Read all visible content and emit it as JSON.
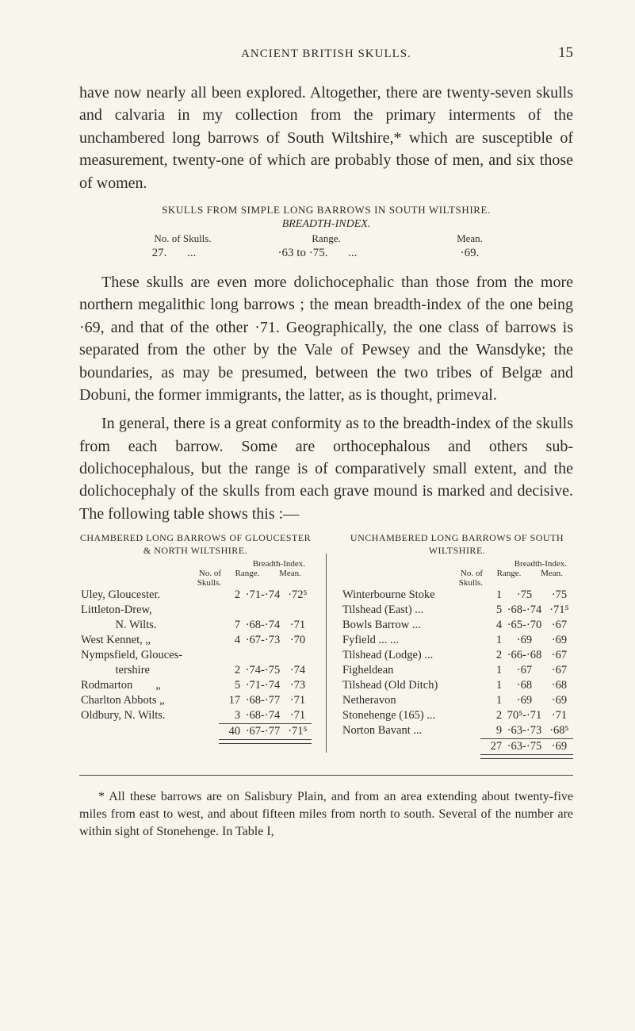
{
  "page": {
    "running_title": "ANCIENT BRITISH SKULLS.",
    "number": "15",
    "background_color": "#f8f5ec",
    "text_color": "#2b2b26",
    "font_family": "Times New Roman",
    "body_fontsize_pt": 15,
    "small_caps_fontsize_pt": 10,
    "footnote_fontsize_pt": 12
  },
  "para1": "have now nearly all been explored. Altogether, there are twenty-seven skulls and calvaria in my collection from the primary interments of the unchambered long barrows of South Wiltshire,* which are susceptible of measurement, twenty-one of which are probably those of men, and six those of women.",
  "simple_table": {
    "title": "SKULLS FROM SIMPLE LONG BARROWS IN SOUTH WILTSHIRE.",
    "subtitle": "BREADTH-INDEX.",
    "headers": [
      "No. of Skulls.",
      "Range.",
      "Mean."
    ],
    "row": [
      "27.",
      "·63 to ·75.",
      "·69."
    ],
    "ellipsis": "..."
  },
  "para2": "These skulls are even more dolichocephalic than those from the more northern megalithic long barrows ; the mean breadth-index of the one being ·69, and that of the other ·71. Geographically, the one class of barrows is separated from the other by the Vale of Pewsey and the Wansdyke; the boundaries, as may be presumed, between the two tribes of Belgæ and Dobuni, the former immigrants, the latter, as is thought, primeval.",
  "para3": "In general, there is a great conformity as to the breadth-index of the skulls from each barrow. Some are orthocephalous and others sub-dolichocephalous, but the range is of comparatively small extent, and the dolichocephaly of the skulls from each grave mound is marked and decisive. The following table shows this :—",
  "left_table": {
    "title": "CHAMBERED LONG BARROWS OF GLOUCESTER & NORTH WILTSHIRE.",
    "bi_label": "Breadth-Index.",
    "col_labels": {
      "noof": "No. of\nSkulls.",
      "range": "Range.",
      "mean": "Mean."
    },
    "rows": [
      {
        "name": "Uley, Gloucester.",
        "n": "2",
        "range": "·71-·74",
        "mean": "·72⁵"
      },
      {
        "name": "Littleton-Drew,",
        "n": "",
        "range": "",
        "mean": ""
      },
      {
        "name": "   N. Wilts.",
        "n": "7",
        "range": "·68-·74",
        "mean": "·71"
      },
      {
        "name": "West Kennet,   „",
        "n": "4",
        "range": "·67-·73",
        "mean": "·70"
      },
      {
        "name": "Nympsfield, Glouces-",
        "n": "",
        "range": "",
        "mean": ""
      },
      {
        "name": "   tershire",
        "n": "2",
        "range": "·74-·75",
        "mean": "·74"
      },
      {
        "name": "Rodmarton  „",
        "n": "5",
        "range": "·71-·74",
        "mean": "·73"
      },
      {
        "name": "Charlton Abbots „",
        "n": "17",
        "range": "·68-·77",
        "mean": "·71"
      },
      {
        "name": "Oldbury, N. Wilts.",
        "n": "3",
        "range": "·68-·74",
        "mean": "·71"
      }
    ],
    "total": {
      "n": "40",
      "range": "·67-·77",
      "mean": "·71⁵"
    }
  },
  "right_table": {
    "title": "UNCHAMBERED LONG BARROWS OF SOUTH WILTSHIRE.",
    "bi_label": "Breadth-Index.",
    "col_labels": {
      "noof": "No. of\nSkulls.",
      "range": "Range.",
      "mean": "Mean."
    },
    "rows": [
      {
        "name": "Winterbourne Stoke",
        "n": "1",
        "range": "·75",
        "mean": "·75"
      },
      {
        "name": "Tilshead (East)   ...",
        "n": "5",
        "range": "·68-·74",
        "mean": "·71⁵"
      },
      {
        "name": "Bowls Barrow    ...",
        "n": "4",
        "range": "·65-·70",
        "mean": "·67"
      },
      {
        "name": "Fyfield    ...    ...",
        "n": "1",
        "range": "·69",
        "mean": "·69"
      },
      {
        "name": "Tilshead (Lodge) ...",
        "n": "2",
        "range": "·66-·68",
        "mean": "·67"
      },
      {
        "name": "Figheldean",
        "n": "1",
        "range": "·67",
        "mean": "·67"
      },
      {
        "name": "Tilshead (Old Ditch)",
        "n": "1",
        "range": "·68",
        "mean": "·68"
      },
      {
        "name": "Netheravon",
        "n": "1",
        "range": "·69",
        "mean": "·69"
      },
      {
        "name": "Stonehenge (165) ...",
        "n": "2",
        "range": "70⁵-·71",
        "mean": "·71"
      },
      {
        "name": "Norton Bavant   ...",
        "n": "9",
        "range": "·63-·73",
        "mean": "·68⁵"
      }
    ],
    "total": {
      "n": "27",
      "range": "·63-·75",
      "mean": "·69"
    }
  },
  "footnote": "* All these barrows are on Salisbury Plain, and from an area extending about twenty-five miles from east to west, and about fifteen miles from north to south. Several of the number are within sight of Stonehenge. In Table I,"
}
